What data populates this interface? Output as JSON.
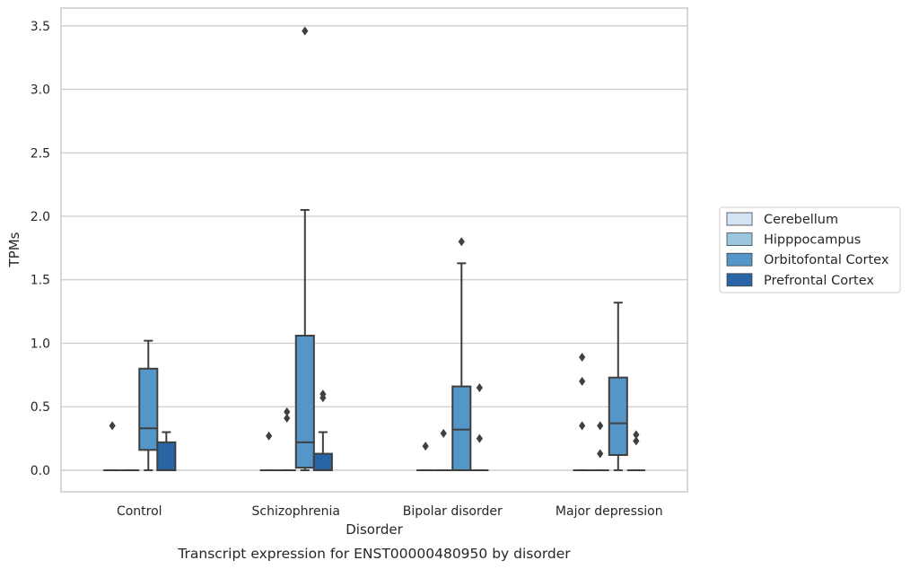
{
  "caption": "Transcript expression for ENST00000480950 by disorder",
  "chart_data": {
    "type": "box",
    "title": "",
    "xlabel": "Disorder",
    "ylabel": "TPMs",
    "categories": [
      "Control",
      "Schizophrenia",
      "Bipolar disorder",
      "Major depression"
    ],
    "ylim": [
      -0.17,
      3.64
    ],
    "yticks": [
      "0.0",
      "0.5",
      "1.0",
      "1.5",
      "2.0",
      "2.5",
      "3.0",
      "3.5"
    ],
    "grid": "horizontal",
    "legend_position": "center-right",
    "series": [
      {
        "name": "Cerebellum",
        "color": "#d4e4f2",
        "boxes": [
          {
            "q1": 0,
            "median": 0,
            "q3": 0,
            "whislo": 0,
            "whishi": 0,
            "fliers": [
              0.35
            ]
          },
          {
            "q1": 0,
            "median": 0,
            "q3": 0,
            "whislo": 0,
            "whishi": 0,
            "fliers": [
              0.27
            ]
          },
          {
            "q1": 0,
            "median": 0,
            "q3": 0,
            "whislo": 0,
            "whishi": 0,
            "fliers": [
              0.19
            ]
          },
          {
            "q1": 0,
            "median": 0,
            "q3": 0,
            "whislo": 0,
            "whishi": 0,
            "fliers": [
              0.35,
              0.7,
              0.89
            ]
          }
        ]
      },
      {
        "name": "Hipppocampus",
        "color": "#9cc5e0",
        "boxes": [
          {
            "q1": 0,
            "median": 0,
            "q3": 0,
            "whislo": 0,
            "whishi": 0,
            "fliers": []
          },
          {
            "q1": 0,
            "median": 0,
            "q3": 0,
            "whislo": 0,
            "whishi": 0,
            "fliers": [
              0.41,
              0.46
            ]
          },
          {
            "q1": 0,
            "median": 0,
            "q3": 0,
            "whislo": 0,
            "whishi": 0,
            "fliers": [
              0.29
            ]
          },
          {
            "q1": 0,
            "median": 0,
            "q3": 0,
            "whislo": 0,
            "whishi": 0,
            "fliers": [
              0.13,
              0.35
            ]
          }
        ]
      },
      {
        "name": "Orbitofontal Cortex",
        "color": "#5496c8",
        "boxes": [
          {
            "q1": 0.16,
            "median": 0.33,
            "q3": 0.8,
            "whislo": 0,
            "whishi": 1.02,
            "fliers": []
          },
          {
            "q1": 0.02,
            "median": 0.22,
            "q3": 1.06,
            "whislo": 0,
            "whishi": 2.05,
            "fliers": [
              3.46
            ]
          },
          {
            "q1": 0,
            "median": 0.32,
            "q3": 0.66,
            "whislo": 0,
            "whishi": 1.63,
            "fliers": [
              1.8
            ]
          },
          {
            "q1": 0.12,
            "median": 0.37,
            "q3": 0.73,
            "whislo": 0,
            "whishi": 1.32,
            "fliers": []
          }
        ]
      },
      {
        "name": "Prefrontal Cortex",
        "color": "#2964a5",
        "boxes": [
          {
            "q1": 0,
            "median": 0,
            "q3": 0.22,
            "whislo": 0,
            "whishi": 0.3,
            "fliers": []
          },
          {
            "q1": 0,
            "median": 0,
            "q3": 0.13,
            "whislo": 0,
            "whishi": 0.3,
            "fliers": [
              0.57,
              0.6
            ]
          },
          {
            "q1": 0,
            "median": 0,
            "q3": 0,
            "whislo": 0,
            "whishi": 0,
            "fliers": [
              0.25,
              0.65
            ]
          },
          {
            "q1": 0,
            "median": 0,
            "q3": 0,
            "whislo": 0,
            "whishi": 0,
            "fliers": [
              0.23,
              0.28
            ]
          }
        ]
      }
    ]
  }
}
